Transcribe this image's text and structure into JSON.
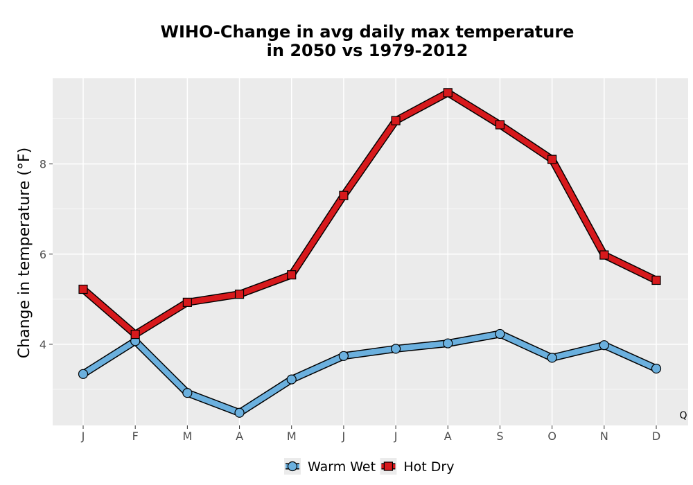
{
  "chart_data": {
    "type": "line",
    "title_lines": [
      "WIHO-Change in avg daily max temperature",
      "in 2050 vs 1979-2012"
    ],
    "xlabel": "",
    "ylabel": "Change in temperature (°F)",
    "categories": [
      "J",
      "F",
      "M",
      "A",
      "M",
      "J",
      "J",
      "A",
      "S",
      "O",
      "N",
      "D"
    ],
    "yticks": [
      4,
      6,
      8
    ],
    "ylim": [
      2.2,
      9.9
    ],
    "grid": true,
    "legend_position": "bottom",
    "corner_annotation": "Q",
    "series": [
      {
        "name": "Warm Wet",
        "color": "#6bb0de",
        "marker": "circle",
        "values": [
          3.34,
          4.07,
          2.92,
          2.48,
          3.22,
          3.74,
          3.9,
          4.02,
          4.23,
          3.7,
          3.98,
          3.46
        ]
      },
      {
        "name": "Hot Dry",
        "color": "#d7191c",
        "marker": "square",
        "values": [
          5.22,
          4.22,
          4.93,
          5.11,
          5.54,
          7.3,
          8.96,
          9.58,
          8.87,
          8.1,
          5.98,
          5.42
        ]
      }
    ]
  }
}
